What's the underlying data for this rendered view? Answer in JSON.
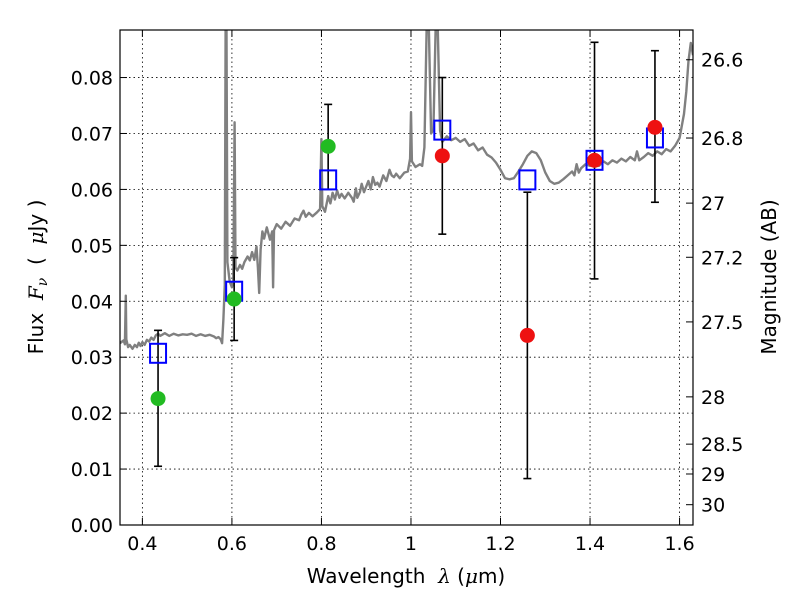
{
  "chart_data": {
    "type": "scatter",
    "title": "",
    "xlabel": {
      "prefix": "Wavelength  ",
      "symbol": "λ",
      "unit_open": " (",
      "unit_mu": "μ",
      "unit_rest": "m)"
    },
    "ylabel": {
      "prefix": "Flux  ",
      "symbol": "F",
      "subscript": "ν",
      "unit_open": "  (  ",
      "unit_mu": "μ",
      "unit_rest": "Jy )"
    },
    "y2label": "Magnitude (AB)",
    "xlim": [
      0.35,
      1.63
    ],
    "ylim": [
      0,
      0.0885
    ],
    "grid": true,
    "x_ticks": [
      {
        "value": 0.4,
        "label": "0.4"
      },
      {
        "value": 0.6,
        "label": "0.6"
      },
      {
        "value": 0.8,
        "label": "0.8"
      },
      {
        "value": 1.0,
        "label": "1"
      },
      {
        "value": 1.2,
        "label": "1.2"
      },
      {
        "value": 1.4,
        "label": "1.4"
      },
      {
        "value": 1.6,
        "label": "1.6"
      }
    ],
    "y_ticks": [
      {
        "value": 0.0,
        "label": "0.00"
      },
      {
        "value": 0.01,
        "label": "0.01"
      },
      {
        "value": 0.02,
        "label": "0.02"
      },
      {
        "value": 0.03,
        "label": "0.03"
      },
      {
        "value": 0.04,
        "label": "0.04"
      },
      {
        "value": 0.05,
        "label": "0.05"
      },
      {
        "value": 0.06,
        "label": "0.06"
      },
      {
        "value": 0.07,
        "label": "0.07"
      },
      {
        "value": 0.08,
        "label": "0.08"
      }
    ],
    "mag_ticks": [
      {
        "value": 26.6,
        "label": "26.6"
      },
      {
        "value": 26.8,
        "label": "26.8"
      },
      {
        "value": 27.0,
        "label": "27"
      },
      {
        "value": 27.2,
        "label": "27.2"
      },
      {
        "value": 27.5,
        "label": "27.5"
      },
      {
        "value": 28.0,
        "label": "28"
      },
      {
        "value": 28.5,
        "label": "28.5"
      },
      {
        "value": 29.0,
        "label": "29"
      },
      {
        "value": 30.0,
        "label": "30"
      }
    ],
    "series": [
      {
        "kind": "spectrum-line",
        "color": "#808080",
        "points": [
          [
            0.35,
            0.0325
          ],
          [
            0.355,
            0.0328
          ],
          [
            0.358,
            0.033
          ],
          [
            0.361,
            0.0323
          ],
          [
            0.363,
            0.041
          ],
          [
            0.364,
            0.0332
          ],
          [
            0.368,
            0.0318
          ],
          [
            0.372,
            0.0322
          ],
          [
            0.378,
            0.0315
          ],
          [
            0.383,
            0.0322
          ],
          [
            0.388,
            0.0318
          ],
          [
            0.392,
            0.0326
          ],
          [
            0.396,
            0.032
          ],
          [
            0.4,
            0.0327
          ],
          [
            0.405,
            0.0322
          ],
          [
            0.41,
            0.0331
          ],
          [
            0.415,
            0.0328
          ],
          [
            0.42,
            0.0335
          ],
          [
            0.425,
            0.0331
          ],
          [
            0.43,
            0.0339
          ],
          [
            0.435,
            0.0342
          ],
          [
            0.44,
            0.0338
          ],
          [
            0.45,
            0.0343
          ],
          [
            0.46,
            0.0338
          ],
          [
            0.47,
            0.0342
          ],
          [
            0.48,
            0.0339
          ],
          [
            0.49,
            0.0341
          ],
          [
            0.5,
            0.034
          ],
          [
            0.51,
            0.0342
          ],
          [
            0.52,
            0.0338
          ],
          [
            0.53,
            0.0341
          ],
          [
            0.54,
            0.0338
          ],
          [
            0.55,
            0.034
          ],
          [
            0.56,
            0.0337
          ],
          [
            0.565,
            0.0334
          ],
          [
            0.57,
            0.0336
          ],
          [
            0.575,
            0.0332
          ],
          [
            0.578,
            0.0325
          ],
          [
            0.581,
            0.0368
          ],
          [
            0.584,
            0.043
          ],
          [
            0.586,
            0.0885
          ],
          [
            0.588,
            0.0885
          ],
          [
            0.59,
            0.047
          ],
          [
            0.595,
            0.0435
          ],
          [
            0.6,
            0.0425
          ],
          [
            0.603,
            0.0435
          ],
          [
            0.606,
            0.072
          ],
          [
            0.608,
            0.046
          ],
          [
            0.612,
            0.0455
          ],
          [
            0.618,
            0.0465
          ],
          [
            0.623,
            0.0458
          ],
          [
            0.628,
            0.047
          ],
          [
            0.635,
            0.048
          ],
          [
            0.64,
            0.0473
          ],
          [
            0.645,
            0.0488
          ],
          [
            0.65,
            0.0474
          ],
          [
            0.655,
            0.0498
          ],
          [
            0.658,
            0.046
          ],
          [
            0.661,
            0.0415
          ],
          [
            0.664,
            0.0492
          ],
          [
            0.668,
            0.0525
          ],
          [
            0.672,
            0.0512
          ],
          [
            0.678,
            0.0532
          ],
          [
            0.685,
            0.051
          ],
          [
            0.69,
            0.0525
          ],
          [
            0.692,
            0.0425
          ],
          [
            0.694,
            0.0527
          ],
          [
            0.7,
            0.0538
          ],
          [
            0.71,
            0.053
          ],
          [
            0.72,
            0.0542
          ],
          [
            0.73,
            0.0535
          ],
          [
            0.74,
            0.0548
          ],
          [
            0.75,
            0.0545
          ],
          [
            0.755,
            0.0555
          ],
          [
            0.76,
            0.0562
          ],
          [
            0.765,
            0.0551
          ],
          [
            0.772,
            0.0558
          ],
          [
            0.78,
            0.0552
          ],
          [
            0.79,
            0.0559
          ],
          [
            0.797,
            0.0565
          ],
          [
            0.8,
            0.069
          ],
          [
            0.802,
            0.057
          ],
          [
            0.808,
            0.056
          ],
          [
            0.815,
            0.0588
          ],
          [
            0.82,
            0.0575
          ],
          [
            0.825,
            0.0594
          ],
          [
            0.83,
            0.0582
          ],
          [
            0.835,
            0.0598
          ],
          [
            0.84,
            0.0585
          ],
          [
            0.845,
            0.0592
          ],
          [
            0.852,
            0.0584
          ],
          [
            0.86,
            0.0594
          ],
          [
            0.868,
            0.0585
          ],
          [
            0.872,
            0.0578
          ],
          [
            0.877,
            0.0602
          ],
          [
            0.88,
            0.0585
          ],
          [
            0.886,
            0.0595
          ],
          [
            0.89,
            0.061
          ],
          [
            0.895,
            0.0595
          ],
          [
            0.9,
            0.0605
          ],
          [
            0.905,
            0.0615
          ],
          [
            0.91,
            0.06
          ],
          [
            0.915,
            0.0622
          ],
          [
            0.92,
            0.0608
          ],
          [
            0.925,
            0.0612
          ],
          [
            0.93,
            0.0605
          ],
          [
            0.938,
            0.0625
          ],
          [
            0.945,
            0.0615
          ],
          [
            0.952,
            0.0635
          ],
          [
            0.957,
            0.0625
          ],
          [
            0.962,
            0.0622
          ],
          [
            0.967,
            0.0628
          ],
          [
            0.975,
            0.062
          ],
          [
            0.985,
            0.063
          ],
          [
            0.993,
            0.0632
          ],
          [
            0.998,
            0.0655
          ],
          [
            1.0,
            0.0738
          ],
          [
            1.002,
            0.065
          ],
          [
            1.01,
            0.064
          ],
          [
            1.02,
            0.0645
          ],
          [
            1.025,
            0.0642
          ],
          [
            1.03,
            0.0675
          ],
          [
            1.035,
            0.0885
          ],
          [
            1.04,
            0.0885
          ],
          [
            1.045,
            0.07
          ],
          [
            1.05,
            0.0706
          ],
          [
            1.055,
            0.0885
          ],
          [
            1.06,
            0.0885
          ],
          [
            1.065,
            0.0705
          ],
          [
            1.07,
            0.0685
          ],
          [
            1.08,
            0.0695
          ],
          [
            1.09,
            0.0688
          ],
          [
            1.1,
            0.0692
          ],
          [
            1.11,
            0.0685
          ],
          [
            1.12,
            0.069
          ],
          [
            1.13,
            0.0678
          ],
          [
            1.14,
            0.0682
          ],
          [
            1.15,
            0.067
          ],
          [
            1.16,
            0.0675
          ],
          [
            1.17,
            0.0662
          ],
          [
            1.18,
            0.0657
          ],
          [
            1.19,
            0.0648
          ],
          [
            1.2,
            0.0635
          ],
          [
            1.21,
            0.062
          ],
          [
            1.22,
            0.0618
          ],
          [
            1.23,
            0.062
          ],
          [
            1.24,
            0.0632
          ],
          [
            1.25,
            0.0645
          ],
          [
            1.26,
            0.066
          ],
          [
            1.27,
            0.0668
          ],
          [
            1.28,
            0.0665
          ],
          [
            1.29,
            0.0652
          ],
          [
            1.3,
            0.063
          ],
          [
            1.31,
            0.0615
          ],
          [
            1.32,
            0.061
          ],
          [
            1.33,
            0.0612
          ],
          [
            1.34,
            0.0618
          ],
          [
            1.35,
            0.0625
          ],
          [
            1.36,
            0.0632
          ],
          [
            1.365,
            0.0625
          ],
          [
            1.37,
            0.0645
          ],
          [
            1.375,
            0.063
          ],
          [
            1.38,
            0.0638
          ],
          [
            1.39,
            0.0645
          ],
          [
            1.4,
            0.0642
          ],
          [
            1.41,
            0.0648
          ],
          [
            1.42,
            0.0642
          ],
          [
            1.43,
            0.065
          ],
          [
            1.44,
            0.0645
          ],
          [
            1.45,
            0.0652
          ],
          [
            1.46,
            0.0648
          ],
          [
            1.47,
            0.0655
          ],
          [
            1.48,
            0.065
          ],
          [
            1.49,
            0.0658
          ],
          [
            1.5,
            0.0652
          ],
          [
            1.505,
            0.0668
          ],
          [
            1.51,
            0.0652
          ],
          [
            1.52,
            0.0658
          ],
          [
            1.53,
            0.0665
          ],
          [
            1.54,
            0.066
          ],
          [
            1.55,
            0.0668
          ],
          [
            1.56,
            0.0663
          ],
          [
            1.57,
            0.0672
          ],
          [
            1.58,
            0.0668
          ],
          [
            1.59,
            0.0678
          ],
          [
            1.6,
            0.0692
          ],
          [
            1.61,
            0.0735
          ],
          [
            1.615,
            0.0775
          ],
          [
            1.62,
            0.083
          ],
          [
            1.625,
            0.0862
          ],
          [
            1.63,
            0.084
          ]
        ]
      },
      {
        "kind": "open-squares",
        "color": "#0000ff",
        "points": [
          {
            "x": 0.435,
            "y": 0.0307
          },
          {
            "x": 0.605,
            "y": 0.0418
          },
          {
            "x": 0.815,
            "y": 0.0617
          },
          {
            "x": 1.07,
            "y": 0.0706
          },
          {
            "x": 1.26,
            "y": 0.0617
          },
          {
            "x": 1.41,
            "y": 0.0652
          },
          {
            "x": 1.545,
            "y": 0.0692
          }
        ]
      },
      {
        "kind": "filled-circles",
        "color": "#22bb22",
        "points": [
          {
            "x": 0.435,
            "y": 0.0226,
            "ylow": 0.0105,
            "yhigh": 0.0348
          },
          {
            "x": 0.605,
            "y": 0.0404,
            "ylow": 0.033,
            "yhigh": 0.0478
          },
          {
            "x": 0.815,
            "y": 0.0677,
            "ylow": 0.06,
            "yhigh": 0.0752
          }
        ]
      },
      {
        "kind": "filled-circles",
        "color": "#ee1111",
        "points": [
          {
            "x": 1.07,
            "y": 0.066,
            "ylow": 0.052,
            "yhigh": 0.08
          },
          {
            "x": 1.26,
            "y": 0.0339,
            "ylow": 0.0083,
            "yhigh": 0.0595
          },
          {
            "x": 1.41,
            "y": 0.0652,
            "ylow": 0.044,
            "yhigh": 0.0863
          },
          {
            "x": 1.545,
            "y": 0.0711,
            "ylow": 0.0577,
            "yhigh": 0.0848
          }
        ]
      }
    ]
  }
}
